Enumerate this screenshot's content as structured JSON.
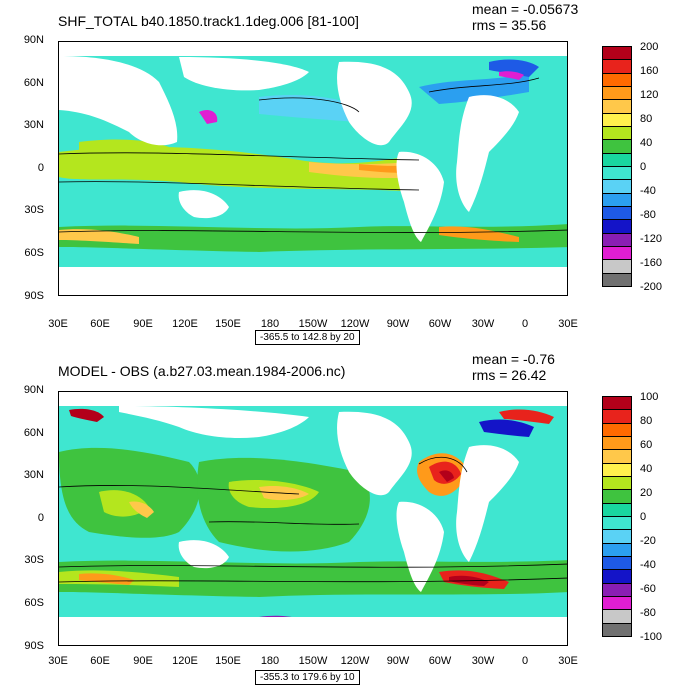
{
  "panels": [
    {
      "title": "SHF_TOTAL b40.1850.track1.1deg.006 [81-100]",
      "mean_label": "mean = -0.05673",
      "rms_label": "rms = 35.56",
      "range_label": "-365.5 to 142.8 by 20",
      "lat_labels": [
        "90N",
        "60N",
        "30N",
        "0",
        "30S",
        "60S",
        "90S"
      ],
      "lon_labels": [
        "30E",
        "60E",
        "90E",
        "120E",
        "150E",
        "180",
        "150W",
        "120W",
        "90W",
        "60W",
        "30W",
        "0",
        "30E"
      ],
      "legend_levels": [
        "200",
        "160",
        "120",
        "80",
        "40",
        "0",
        "-40",
        "-80",
        "-120",
        "-160",
        "-200"
      ],
      "legend_colors": [
        "#b3001a",
        "#e8231c",
        "#ff6a00",
        "#ff9a1a",
        "#ffc84a",
        "#fff04d",
        "#b4e61e",
        "#3fc33f",
        "#19d6a0",
        "#3fe6d0",
        "#5ad2f5",
        "#2b9ff0",
        "#1e5ae6",
        "#1414c8",
        "#8a1eb4",
        "#e01ed2",
        "#c8c8c8",
        "#707070"
      ]
    },
    {
      "title": "MODEL - OBS (a.b27.03.mean.1984-2006.nc)",
      "mean_label": "mean = -0.76",
      "rms_label": "rms = 26.42",
      "range_label": "-355.3 to 179.6 by 10",
      "lat_labels": [
        "90N",
        "60N",
        "30N",
        "0",
        "30S",
        "60S",
        "90S"
      ],
      "lon_labels": [
        "30E",
        "60E",
        "90E",
        "120E",
        "150E",
        "180",
        "150W",
        "120W",
        "90W",
        "60W",
        "30W",
        "0",
        "30E"
      ],
      "legend_levels": [
        "100",
        "80",
        "60",
        "40",
        "20",
        "0",
        "-20",
        "-40",
        "-60",
        "-80",
        "-100"
      ],
      "legend_colors": [
        "#b3001a",
        "#e8231c",
        "#ff6a00",
        "#ff9a1a",
        "#ffc84a",
        "#fff04d",
        "#b4e61e",
        "#3fc33f",
        "#19d6a0",
        "#3fe6d0",
        "#5ad2f5",
        "#2b9ff0",
        "#1e5ae6",
        "#1414c8",
        "#8a1eb4",
        "#e01ed2",
        "#c8c8c8",
        "#707070"
      ]
    }
  ]
}
